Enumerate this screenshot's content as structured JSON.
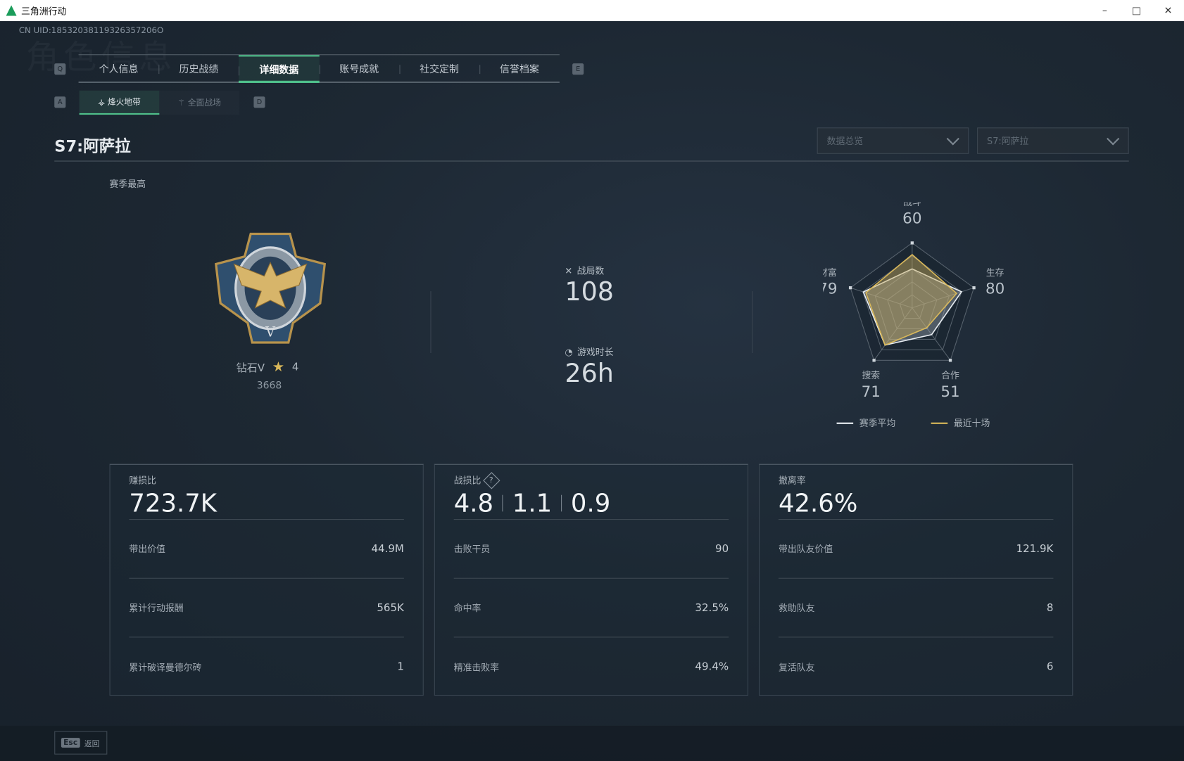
{
  "window": {
    "title": "三角洲行动",
    "minimize": "–",
    "maximize": "□",
    "close": "✕"
  },
  "uid": "CN UID:18532038119326357206O",
  "watermark": "角色信息",
  "keys": {
    "prev_tab": "Q",
    "next_tab": "E",
    "prev_sub": "A",
    "next_sub": "D"
  },
  "tabs": [
    {
      "label": "个人信息"
    },
    {
      "label": "历史战绩"
    },
    {
      "label": "详细数据",
      "active": true
    },
    {
      "label": "账号成就"
    },
    {
      "label": "社交定制"
    },
    {
      "label": "信誉档案"
    }
  ],
  "subtabs": [
    {
      "label": "烽火地带",
      "icon": "hazard-zone-icon",
      "active": true
    },
    {
      "label": "全面战场",
      "icon": "warfare-icon"
    }
  ],
  "season_title": "S7:阿萨拉",
  "filters": {
    "view": "数据总览",
    "season": "S7:阿萨拉"
  },
  "rank": {
    "section_label": "赛季最高",
    "name": "钻石V",
    "stars": "4",
    "score": "3668"
  },
  "stats": {
    "matches_label": "战局数",
    "matches": "108",
    "playtime_label": "游戏时长",
    "playtime": "26h"
  },
  "chart_data": {
    "type": "radar",
    "axes": [
      "战斗",
      "生存",
      "合作",
      "搜索",
      "财富"
    ],
    "max": 100,
    "series": [
      {
        "name": "赛季平均",
        "color": "#e8edf2",
        "values": [
          60,
          80,
          51,
          71,
          79
        ]
      },
      {
        "name": "最近十场",
        "color": "#d9b85a",
        "values": [
          82,
          72,
          38,
          71,
          75
        ]
      }
    ],
    "labels": [
      "60",
      "80",
      "51",
      "71",
      "79"
    ]
  },
  "cards": [
    {
      "title": "赚损比",
      "big": [
        "723.7K"
      ],
      "rows": [
        {
          "label": "带出价值",
          "value": "44.9M"
        },
        {
          "label": "累计行动报酬",
          "value": "565K"
        },
        {
          "label": "累计破译曼德尔砖",
          "value": "1"
        }
      ]
    },
    {
      "title": "战损比",
      "help": "?",
      "big": [
        "4.8",
        "1.1",
        "0.9"
      ],
      "rows": [
        {
          "label": "击败干员",
          "value": "90"
        },
        {
          "label": "命中率",
          "value": "32.5%"
        },
        {
          "label": "精准击败率",
          "value": "49.4%"
        }
      ]
    },
    {
      "title": "撤离率",
      "big": [
        "42.6%"
      ],
      "rows": [
        {
          "label": "带出队友价值",
          "value": "121.9K"
        },
        {
          "label": "救助队友",
          "value": "8"
        },
        {
          "label": "复活队友",
          "value": "6"
        }
      ]
    }
  ],
  "footer": {
    "esc_key": "Esc",
    "back": "返回"
  }
}
